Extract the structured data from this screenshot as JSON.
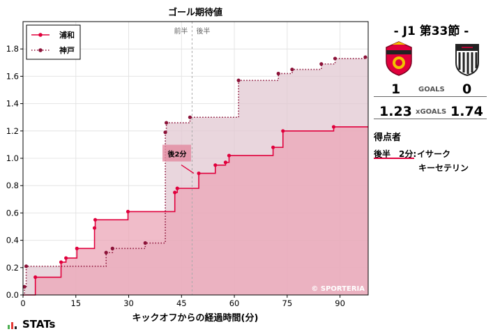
{
  "chart_data": {
    "type": "step-area",
    "title": "ゴール期待値",
    "xlabel": "キックオフからの経過時間(分)",
    "ylabel": "",
    "xlim": [
      0,
      98
    ],
    "ylim": [
      0,
      2.0
    ],
    "xticks": [
      0,
      15,
      30,
      45,
      60,
      75,
      90
    ],
    "yticks": [
      0.0,
      0.2,
      0.4,
      0.6,
      0.8,
      1.0,
      1.2,
      1.4,
      1.6,
      1.8
    ],
    "halftime_line": 48,
    "halftime_labels": [
      "前半",
      "後半"
    ],
    "legend_position": "top-left",
    "grid": true,
    "series": [
      {
        "name": "浦和",
        "style": "solid",
        "color": "#e0003c",
        "fill": "#eba6b7",
        "points": [
          [
            3.5,
            0.13
          ],
          [
            10.8,
            0.24
          ],
          [
            12.2,
            0.27
          ],
          [
            15.3,
            0.34
          ],
          [
            20.3,
            0.49
          ],
          [
            20.5,
            0.55
          ],
          [
            29.8,
            0.61
          ],
          [
            43.1,
            0.75
          ],
          [
            43.8,
            0.78
          ],
          [
            49.9,
            0.89
          ],
          [
            54.6,
            0.95
          ],
          [
            57.5,
            0.97
          ],
          [
            58.5,
            1.02
          ],
          [
            71,
            1.08
          ],
          [
            73.8,
            1.2
          ],
          [
            88.2,
            1.23
          ]
        ]
      },
      {
        "name": "神戸",
        "style": "dotted",
        "color": "#8b1238",
        "fill": "#e2c8d1",
        "points": [
          [
            0.4,
            0.06
          ],
          [
            0.9,
            0.21
          ],
          [
            23.6,
            0.31
          ],
          [
            25.4,
            0.34
          ],
          [
            34.7,
            0.38
          ],
          [
            40.4,
            1.19
          ],
          [
            40.7,
            1.26
          ],
          [
            47.4,
            1.3
          ],
          [
            61.2,
            1.57
          ],
          [
            72.5,
            1.62
          ],
          [
            76.4,
            1.65
          ],
          [
            84.7,
            1.69
          ],
          [
            88.6,
            1.73
          ],
          [
            97.2,
            1.74
          ]
        ]
      }
    ],
    "annotation": {
      "text": "後2分",
      "x": 48.5,
      "y": 0.89
    },
    "watermark": "© SPORTERIA"
  },
  "match": {
    "round": "- J1 第33節 -",
    "home_goals": "1",
    "away_goals": "0",
    "goals_label": "GOALS",
    "home_xg": "1.23",
    "away_xg": "1.74",
    "xg_label": "xGOALS",
    "scorers_title": "得点者",
    "scorer_time": "後半　2分:",
    "scorer_name_1": "イサーク",
    "scorer_name_2": "キーセテリン",
    "home_color": "#e0003c",
    "away_color": "#222222"
  },
  "brand": {
    "name": "STATs"
  }
}
